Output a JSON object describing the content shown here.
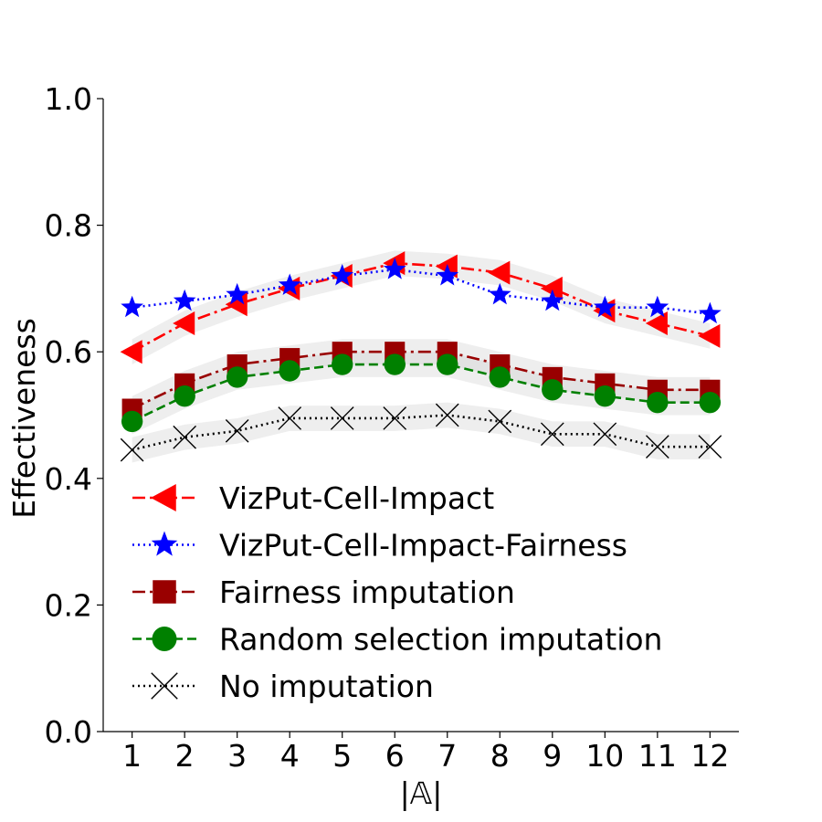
{
  "chart_data": {
    "type": "line",
    "title": "",
    "xlabel": "|𝔸|",
    "ylabel": "Effectiveness",
    "x": [
      1,
      2,
      3,
      4,
      5,
      6,
      7,
      8,
      9,
      10,
      11,
      12
    ],
    "xlim": [
      0.45,
      12.55
    ],
    "ylim": [
      0.0,
      1.0
    ],
    "yticks": [
      "0.0",
      "0.2",
      "0.4",
      "0.6",
      "0.8",
      "1.0"
    ],
    "xticks": [
      "1",
      "2",
      "3",
      "4",
      "5",
      "6",
      "7",
      "8",
      "9",
      "10",
      "11",
      "12"
    ],
    "grid": false,
    "legend_position": "lower-center",
    "series": [
      {
        "name": "VizPut-Cell-Impact",
        "values": [
          0.6,
          0.645,
          0.675,
          0.7,
          0.72,
          0.74,
          0.735,
          0.725,
          0.7,
          0.665,
          0.645,
          0.625
        ],
        "color": "#ff0000",
        "linestyle": "dashdot",
        "marker": "triangle-left",
        "band": 0.02
      },
      {
        "name": "VizPut-Cell-Impact-Fairness",
        "values": [
          0.67,
          0.68,
          0.69,
          0.705,
          0.72,
          0.73,
          0.72,
          0.69,
          0.68,
          0.67,
          0.67,
          0.66
        ],
        "color": "#0000ff",
        "linestyle": "dotted",
        "marker": "star",
        "band": 0.0
      },
      {
        "name": "Fairness imputation",
        "values": [
          0.51,
          0.55,
          0.58,
          0.59,
          0.6,
          0.6,
          0.6,
          0.58,
          0.56,
          0.55,
          0.54,
          0.54
        ],
        "color": "#990000",
        "linestyle": "dashdot",
        "marker": "square",
        "band": 0.02
      },
      {
        "name": "Random selection imputation",
        "values": [
          0.49,
          0.53,
          0.56,
          0.57,
          0.58,
          0.58,
          0.58,
          0.56,
          0.54,
          0.53,
          0.52,
          0.52
        ],
        "color": "#008000",
        "linestyle": "dashed",
        "marker": "circle",
        "band": 0.02
      },
      {
        "name": "No imputation",
        "values": [
          0.445,
          0.465,
          0.475,
          0.495,
          0.495,
          0.495,
          0.5,
          0.49,
          0.47,
          0.47,
          0.45,
          0.45
        ],
        "color": "#000000",
        "linestyle": "dotted",
        "marker": "x",
        "band": 0.02
      }
    ]
  }
}
